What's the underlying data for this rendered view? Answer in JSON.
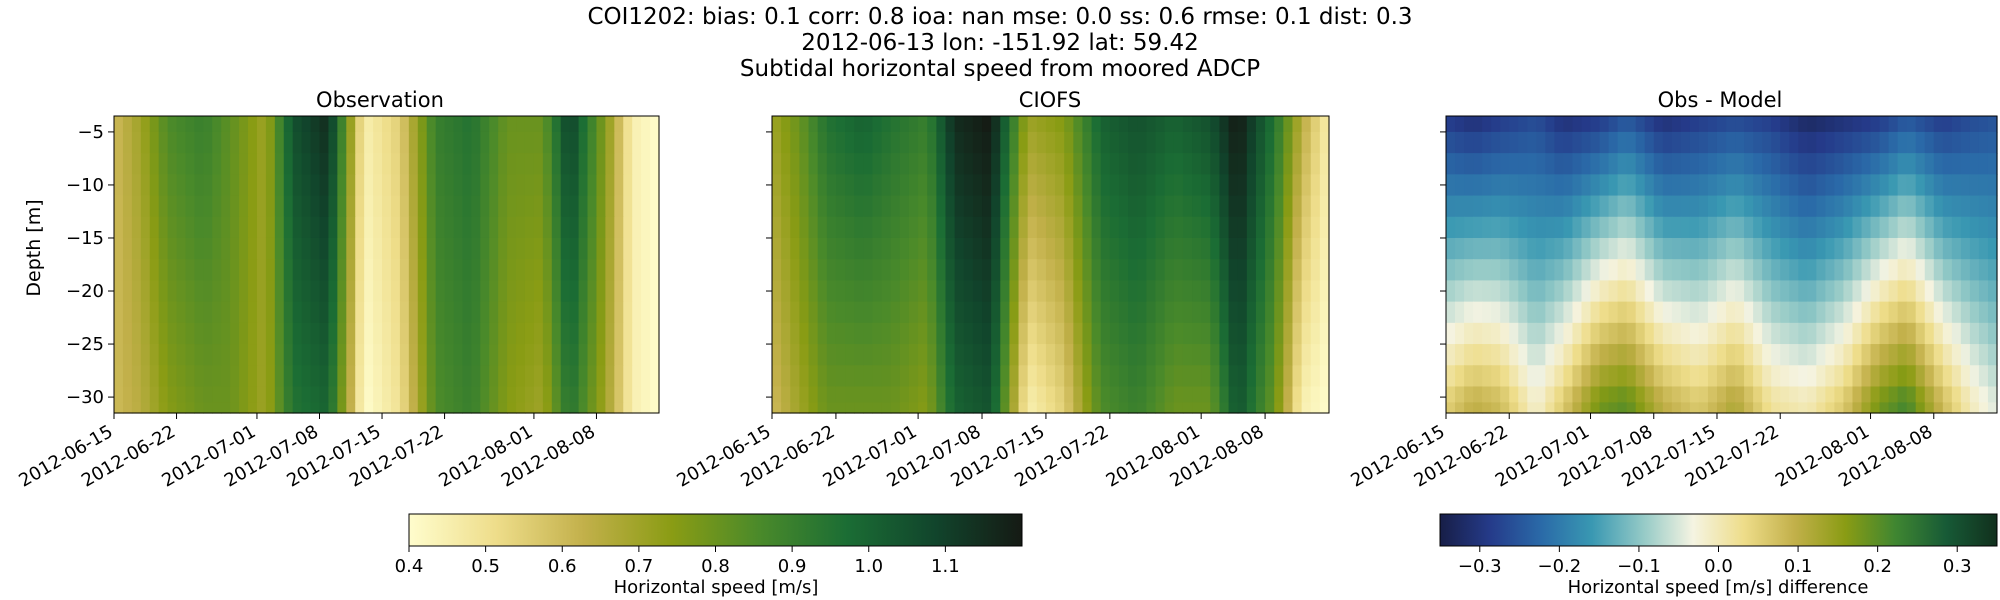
{
  "title": {
    "line1": "COI1202: bias: 0.1  corr: 0.8  ioa: nan  mse: 0.0  ss: 0.6  rmse: 0.1  dist: 0.3",
    "line2": "2012-06-13 lon: -151.92 lat: 59.42",
    "line3": "Subtidal horizontal speed from moored ADCP"
  },
  "chart_data": [
    {
      "type": "heatmap",
      "title": "Observation",
      "xlabel": "",
      "ylabel": "Depth [m]",
      "x_ticks": [
        "2012-06-15",
        "2012-06-22",
        "2012-07-01",
        "2012-07-08",
        "2012-07-15",
        "2012-07-22",
        "2012-08-01",
        "2012-08-08"
      ],
      "y_ticks": [
        -5,
        -10,
        -15,
        -20,
        -25,
        -30
      ],
      "xlim": [
        "2012-06-15",
        "2012-08-15"
      ],
      "ylim": [
        -31.5,
        -3.5
      ],
      "colormap": "speed",
      "vmin": 0.4,
      "vmax": 1.2,
      "depth_levels": [
        -4,
        -6,
        -8,
        -10,
        -12,
        -14,
        -16,
        -18,
        -20,
        -22,
        -24,
        -26,
        -28,
        -30,
        -31
      ],
      "time_nodes": [
        "2012-06-15",
        "2012-06-18",
        "2012-06-21",
        "2012-06-25",
        "2012-06-28",
        "2012-07-02",
        "2012-07-05",
        "2012-07-09",
        "2012-07-13",
        "2012-07-17",
        "2012-07-21",
        "2012-07-25",
        "2012-07-29",
        "2012-08-02",
        "2012-08-05",
        "2012-08-09",
        "2012-08-12",
        "2012-08-15"
      ],
      "surface_speed": [
        0.6,
        0.7,
        0.85,
        0.9,
        0.82,
        0.7,
        1.05,
        1.15,
        0.45,
        0.55,
        0.9,
        0.95,
        0.8,
        0.8,
        1.1,
        0.75,
        0.45,
        0.4
      ],
      "bottom_speed": [
        0.6,
        0.65,
        0.75,
        0.8,
        0.8,
        0.7,
        0.95,
        1.0,
        0.4,
        0.5,
        0.85,
        0.9,
        0.75,
        0.7,
        0.95,
        0.7,
        0.45,
        0.4
      ]
    },
    {
      "type": "heatmap",
      "title": "CIOFS",
      "xlabel": "",
      "ylabel": "",
      "x_ticks": [
        "2012-06-15",
        "2012-06-22",
        "2012-07-01",
        "2012-07-08",
        "2012-07-15",
        "2012-07-22",
        "2012-08-01",
        "2012-08-08"
      ],
      "y_ticks": [
        -5,
        -10,
        -15,
        -20,
        -25,
        -30
      ],
      "xlim": [
        "2012-06-15",
        "2012-08-15"
      ],
      "ylim": [
        -31.5,
        -3.5
      ],
      "colormap": "speed",
      "vmin": 0.4,
      "vmax": 1.2,
      "depth_levels": [
        -4,
        -6,
        -8,
        -10,
        -12,
        -14,
        -16,
        -18,
        -20,
        -22,
        -24,
        -26,
        -28,
        -30,
        -31
      ],
      "time_nodes": [
        "2012-06-15",
        "2012-06-18",
        "2012-06-21",
        "2012-06-25",
        "2012-06-28",
        "2012-07-02",
        "2012-07-05",
        "2012-07-09",
        "2012-07-13",
        "2012-07-17",
        "2012-07-21",
        "2012-07-25",
        "2012-07-29",
        "2012-08-02",
        "2012-08-05",
        "2012-08-09",
        "2012-08-12",
        "2012-08-15"
      ],
      "surface_speed": [
        0.7,
        0.8,
        0.95,
        1.0,
        0.95,
        0.9,
        1.15,
        1.2,
        0.7,
        0.75,
        1.0,
        1.05,
        1.0,
        1.05,
        1.2,
        0.95,
        0.65,
        0.45
      ],
      "bottom_speed": [
        0.6,
        0.7,
        0.8,
        0.8,
        0.8,
        0.75,
        1.0,
        1.05,
        0.45,
        0.55,
        0.85,
        0.9,
        0.8,
        0.8,
        1.05,
        0.8,
        0.45,
        0.4
      ]
    },
    {
      "type": "heatmap",
      "title": "Obs - Model",
      "xlabel": "",
      "ylabel": "",
      "x_ticks": [
        "2012-06-15",
        "2012-06-22",
        "2012-07-01",
        "2012-07-08",
        "2012-07-15",
        "2012-07-22",
        "2012-08-01",
        "2012-08-08"
      ],
      "y_ticks": [
        -5,
        -10,
        -15,
        -20,
        -25,
        -30
      ],
      "xlim": [
        "2012-06-15",
        "2012-08-15"
      ],
      "ylim": [
        -31.5,
        -3.5
      ],
      "colormap": "diff",
      "vmin": -0.35,
      "vmax": 0.35,
      "depth_levels": [
        -4,
        -6,
        -8,
        -10,
        -12,
        -14,
        -16,
        -18,
        -20,
        -22,
        -24,
        -26,
        -28,
        -30,
        -31
      ],
      "time_nodes": [
        "2012-06-15",
        "2012-06-18",
        "2012-06-21",
        "2012-06-25",
        "2012-06-28",
        "2012-07-02",
        "2012-07-05",
        "2012-07-09",
        "2012-07-13",
        "2012-07-17",
        "2012-07-21",
        "2012-07-25",
        "2012-07-29",
        "2012-08-02",
        "2012-08-05",
        "2012-08-09",
        "2012-08-12",
        "2012-08-15"
      ],
      "surface_diff": [
        -0.28,
        -0.3,
        -0.28,
        -0.26,
        -0.3,
        -0.28,
        -0.24,
        -0.3,
        -0.28,
        -0.26,
        -0.28,
        -0.32,
        -0.3,
        -0.28,
        -0.24,
        -0.28,
        -0.26,
        -0.25
      ],
      "bottom_diff": [
        0.05,
        0.1,
        0.08,
        -0.02,
        0.06,
        0.18,
        0.2,
        0.1,
        0.06,
        0.12,
        0.02,
        0.0,
        0.06,
        0.18,
        0.22,
        0.08,
        0.0,
        -0.05
      ]
    }
  ],
  "colorbars": [
    {
      "label": "Horizontal speed [m/s]",
      "colormap": "speed",
      "vmin": 0.4,
      "vmax": 1.2,
      "ticks": [
        "0.4",
        "0.5",
        "0.6",
        "0.7",
        "0.8",
        "0.9",
        "1.0",
        "1.1"
      ]
    },
    {
      "label": "Horizontal speed [m/s] difference",
      "colormap": "diff",
      "vmin": -0.35,
      "vmax": 0.35,
      "ticks": [
        "−0.3",
        "−0.2",
        "−0.1",
        "0.0",
        "0.1",
        "0.2",
        "0.3"
      ]
    }
  ],
  "colors": {
    "speed_stops": [
      "#fffdcd",
      "#eedd8a",
      "#c2b04a",
      "#8a9c14",
      "#4a8a2a",
      "#1b6d34",
      "#11452c",
      "#151a14"
    ],
    "diff_stops": [
      "#171e47",
      "#253b8a",
      "#2a6aa8",
      "#3998b2",
      "#93c9c6",
      "#f5f4e2",
      "#eedd8a",
      "#c2b04a",
      "#8a9c14",
      "#3f8631",
      "#175a36",
      "#11301d"
    ]
  }
}
